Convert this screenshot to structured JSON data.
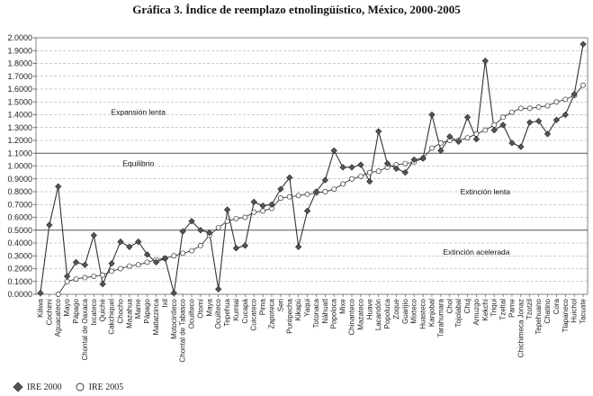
{
  "chart_data": {
    "type": "line",
    "title": "Gráfica 3. Índice de reemplazo etnolingüístico, México, 2000-2005",
    "xlabel": "",
    "ylabel": "",
    "ylim": [
      0,
      2
    ],
    "y_ticks": [
      "0.0000",
      "0.1000",
      "0.2000",
      "0.3000",
      "0.4000",
      "0.5000",
      "0.6000",
      "0.7000",
      "0.8000",
      "0.9000",
      "1.0000",
      "1.1000",
      "1.2000",
      "1.3000",
      "1.4000",
      "1.5000",
      "1.6000",
      "1.7000",
      "1.8000",
      "1.9000",
      "2.0000"
    ],
    "categories": [
      "Kiliwa",
      "Cochimí",
      "Aguacateco",
      "Mayo",
      "Pápago",
      "Chontal de Oaxaca",
      "Ixcateco",
      "Quiché",
      "Cakchiquel",
      "Chocho",
      "Mazahua",
      "Mame",
      "Pápago",
      "Matlatzinca",
      "Ixil",
      "Motocintleco",
      "Chontal de Tabasco",
      "Ocuilteco",
      "Otomí",
      "Maya",
      "Ocuilteco",
      "Tepehua",
      "Kumiai",
      "Cucapá",
      "Cuicateco",
      "Pima",
      "Zapoteca",
      "Seri",
      "Purépecha",
      "Kikapú",
      "Yaqui",
      "Totonaca",
      "Náhuatl",
      "Popoloca",
      "Mixe",
      "Chinanteco",
      "Mazateco",
      "Huave",
      "Lacandón",
      "Popoluca",
      "Zoque",
      "Guarijío",
      "Mixteco",
      "Huasteco",
      "Kanjobal",
      "Tarahumara",
      "Chol",
      "Tojolabal",
      "Chuj",
      "Amuzgo",
      "Kekchí",
      "Triqui",
      "Tzeltal",
      "Pame",
      "Chichimeca Jonaz",
      "Tzotzil",
      "Tepehuano",
      "Chatino",
      "Cora",
      "Tlapaneco",
      "Huichol",
      "Tacuate"
    ],
    "series": [
      {
        "name": "IRE 2000",
        "values": [
          0.01,
          0.54,
          0.84,
          0.14,
          0.25,
          0.23,
          0.46,
          0.08,
          0.24,
          0.41,
          0.37,
          0.41,
          0.31,
          0.25,
          0.28,
          0.01,
          0.49,
          0.57,
          0.5,
          0.48,
          0.04,
          0.66,
          0.36,
          0.38,
          0.72,
          0.69,
          0.7,
          0.82,
          0.91,
          0.37,
          0.65,
          0.8,
          0.89,
          1.12,
          0.99,
          0.99,
          1.01,
          0.88,
          1.27,
          1.02,
          0.98,
          0.95,
          1.05,
          1.06,
          1.4,
          1.12,
          1.23,
          1.19,
          1.38,
          1.21,
          1.82,
          1.28,
          1.32,
          1.18,
          1.15,
          1.34,
          1.35,
          1.25,
          1.36,
          1.4,
          1.56,
          1.95
        ]
      },
      {
        "name": "IRE 2005",
        "values": [
          null,
          null,
          0.0,
          0.1,
          0.12,
          0.13,
          0.14,
          0.15,
          0.18,
          0.2,
          0.22,
          0.23,
          0.25,
          0.27,
          0.28,
          0.3,
          0.32,
          0.34,
          0.38,
          0.46,
          0.52,
          0.57,
          0.59,
          0.6,
          0.64,
          0.65,
          0.67,
          0.75,
          0.76,
          0.77,
          0.78,
          0.79,
          0.8,
          0.82,
          0.86,
          0.9,
          0.92,
          0.95,
          0.96,
          0.99,
          1.01,
          1.02,
          1.03,
          1.06,
          1.14,
          1.18,
          1.2,
          1.2,
          1.22,
          1.25,
          1.28,
          1.32,
          1.38,
          1.42,
          1.45,
          1.45,
          1.46,
          1.47,
          1.5,
          1.52,
          1.55,
          1.63
        ]
      }
    ],
    "reference_lines": [
      {
        "value": 1.1,
        "label": "Equilibrio"
      },
      {
        "value": 0.5,
        "label": ""
      }
    ],
    "annotations": [
      {
        "text": "Expansión lenta",
        "x_index": 11,
        "y": 1.4
      },
      {
        "text": "Equilibrio",
        "x_index": 11,
        "y": 1.0
      },
      {
        "text": "Extinción lenta",
        "x_index": 50,
        "y": 0.78
      },
      {
        "text": "Extinción acelerada",
        "x_index": 49,
        "y": 0.31
      }
    ],
    "grid": true,
    "legend": "bottom-left"
  },
  "colors": {
    "series_2000": "#555555",
    "series_2005": "#ffffff",
    "line": "#333333",
    "grid": "#999999",
    "ref": "#555555"
  }
}
